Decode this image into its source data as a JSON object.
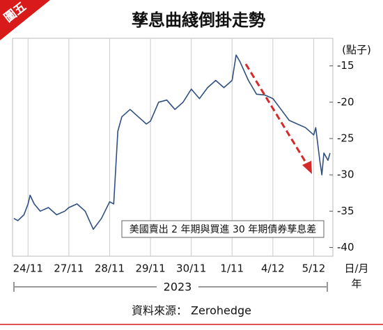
{
  "chart_data": {
    "type": "line",
    "badge": "圖五",
    "title": "孳息曲綫倒掛走勢",
    "y_label": "(點子)",
    "x_label": "日/月",
    "x_label2": "年",
    "year": "2023",
    "annotation": "美國賣出 2 年期與買進 30 年期債券孳息差",
    "source": "資料來源： Zerohedge",
    "color": "#2f4f7f",
    "x": [
      -0.35,
      -0.25,
      -0.1,
      0,
      0.05,
      0.15,
      0.3,
      0.5,
      0.7,
      0.9,
      1.0,
      1.2,
      1.4,
      1.6,
      1.8,
      2.0,
      2.1,
      2.2,
      2.3,
      2.5,
      2.7,
      2.9,
      3.0,
      3.2,
      3.4,
      3.6,
      3.8,
      4.0,
      4.2,
      4.4,
      4.6,
      4.8,
      5.0,
      5.1,
      5.2,
      5.4,
      5.6,
      5.8,
      6.0,
      6.2,
      6.4,
      6.6,
      6.8,
      7.0,
      7.05,
      7.15,
      7.2,
      7.25,
      7.35,
      7.4
    ],
    "values": [
      -36,
      -36.3,
      -35.5,
      -34,
      -32.8,
      -34,
      -35,
      -34.5,
      -35.5,
      -35,
      -34.5,
      -34,
      -35,
      -37.5,
      -36,
      -33.7,
      -34,
      -24,
      -22,
      -21,
      -22,
      -23,
      -22.6,
      -20,
      -19.7,
      -21,
      -20,
      -18.2,
      -19.5,
      -18,
      -17,
      -18,
      -17,
      -13.5,
      -14.5,
      -17,
      -18.9,
      -19,
      -19.5,
      -21,
      -22.5,
      -23,
      -23.5,
      -24.5,
      -23.5,
      -28,
      -30,
      -27,
      -28,
      -27
    ],
    "xlim": [
      -0.38,
      7.47
    ],
    "xticks": [
      {
        "value": 0,
        "label": "24/11"
      },
      {
        "value": 1,
        "label": "27/11"
      },
      {
        "value": 2,
        "label": "28/11"
      },
      {
        "value": 3,
        "label": "29/11"
      },
      {
        "value": 4,
        "label": "30/11"
      },
      {
        "value": 5,
        "label": "1/11"
      },
      {
        "value": 6,
        "label": "4/12"
      },
      {
        "value": 7,
        "label": "5/12"
      }
    ],
    "ylim": [
      -41.2,
      -11.2
    ],
    "yticks": [
      -15,
      -20,
      -25,
      -30,
      -35,
      -40
    ],
    "grid": true
  }
}
